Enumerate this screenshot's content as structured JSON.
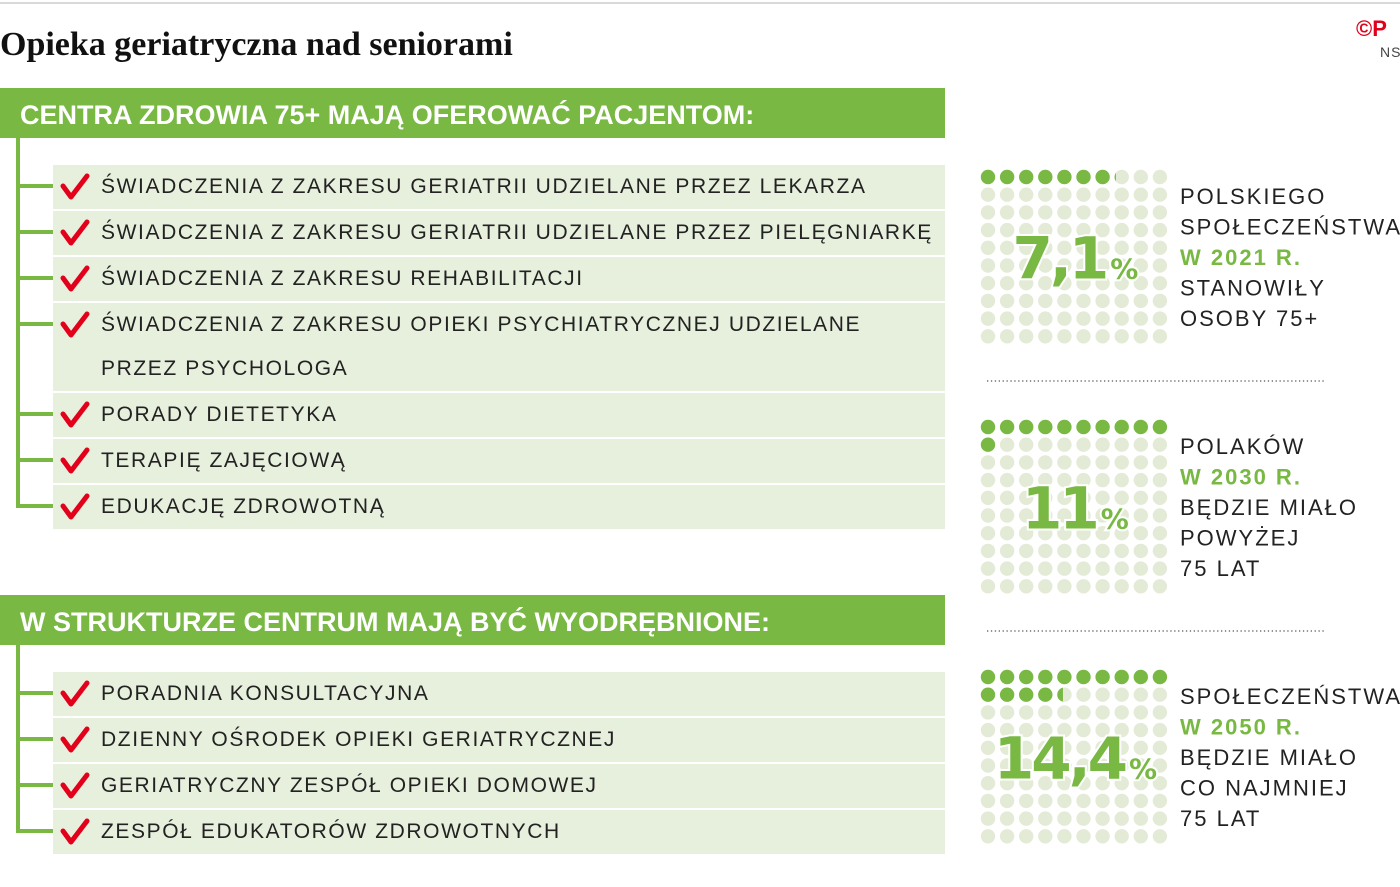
{
  "title": "Opieka geriatryczna nad seniorami",
  "logo": {
    "mark": "©P",
    "sub": "NS"
  },
  "sections": [
    {
      "heading": "CENTRA ZDROWIA 75+ MAJĄ OFEROWAĆ PACJENTOM:",
      "items": [
        "ŚWIADCZENIA Z ZAKRESU GERIATRII UDZIELANE PRZEZ LEKARZA",
        "ŚWIADCZENIA Z ZAKRESU GERIATRII UDZIELANE PRZEZ PIELĘGNIARKĘ",
        "ŚWIADCZENIA Z ZAKRESU REHABILITACJI",
        "ŚWIADCZENIA Z ZAKRESU OPIEKI PSYCHIATRYCZNEJ UDZIELANE PRZEZ PSYCHOLOGA",
        "PORADY DIETETYKA",
        "TERAPIĘ ZAJĘCIOWĄ",
        "EDUKACJĘ ZDROWOTNĄ"
      ]
    },
    {
      "heading": "W STRUKTURZE CENTRUM MAJĄ BYĆ WYODRĘBNIONE:",
      "items": [
        "PORADNIA KONSULTACYJNA",
        "DZIENNY OŚRODEK OPIEKI GERIATRYCZNEJ",
        "GERIATRYCZNY ZESPÓŁ OPIEKI DOMOWEJ",
        "ZESPÓŁ EDUKATORÓW ZDROWOTNYCH"
      ]
    }
  ],
  "stats": [
    {
      "value": 7.1,
      "label": "7,1",
      "unit": "%",
      "lines": [
        {
          "text": "POLSKIEGO",
          "emphasis": false
        },
        {
          "text": "SPOŁECZEŃSTWA",
          "emphasis": false
        },
        {
          "text": "W 2021 R.",
          "emphasis": true
        },
        {
          "text": "STANOWIŁY",
          "emphasis": false
        },
        {
          "text": "OSOBY 75+",
          "emphasis": false
        }
      ]
    },
    {
      "value": 11,
      "label": "11",
      "unit": "%",
      "lines": [
        {
          "text": "POLAKÓW",
          "emphasis": false
        },
        {
          "text": "W 2030 R.",
          "emphasis": true
        },
        {
          "text": "BĘDZIE MIAŁO",
          "emphasis": false
        },
        {
          "text": "POWYŻEJ",
          "emphasis": false
        },
        {
          "text": "75 LAT",
          "emphasis": false
        }
      ]
    },
    {
      "value": 14.4,
      "label": "14,4",
      "unit": "%",
      "lines": [
        {
          "text": "SPOŁECZEŃSTWA",
          "emphasis": false
        },
        {
          "text": "W 2050 R.",
          "emphasis": true
        },
        {
          "text": "BĘDZIE MIAŁO",
          "emphasis": false
        },
        {
          "text": "CO NAJMNIEJ",
          "emphasis": false
        },
        {
          "text": "75 LAT",
          "emphasis": false
        }
      ]
    }
  ]
}
